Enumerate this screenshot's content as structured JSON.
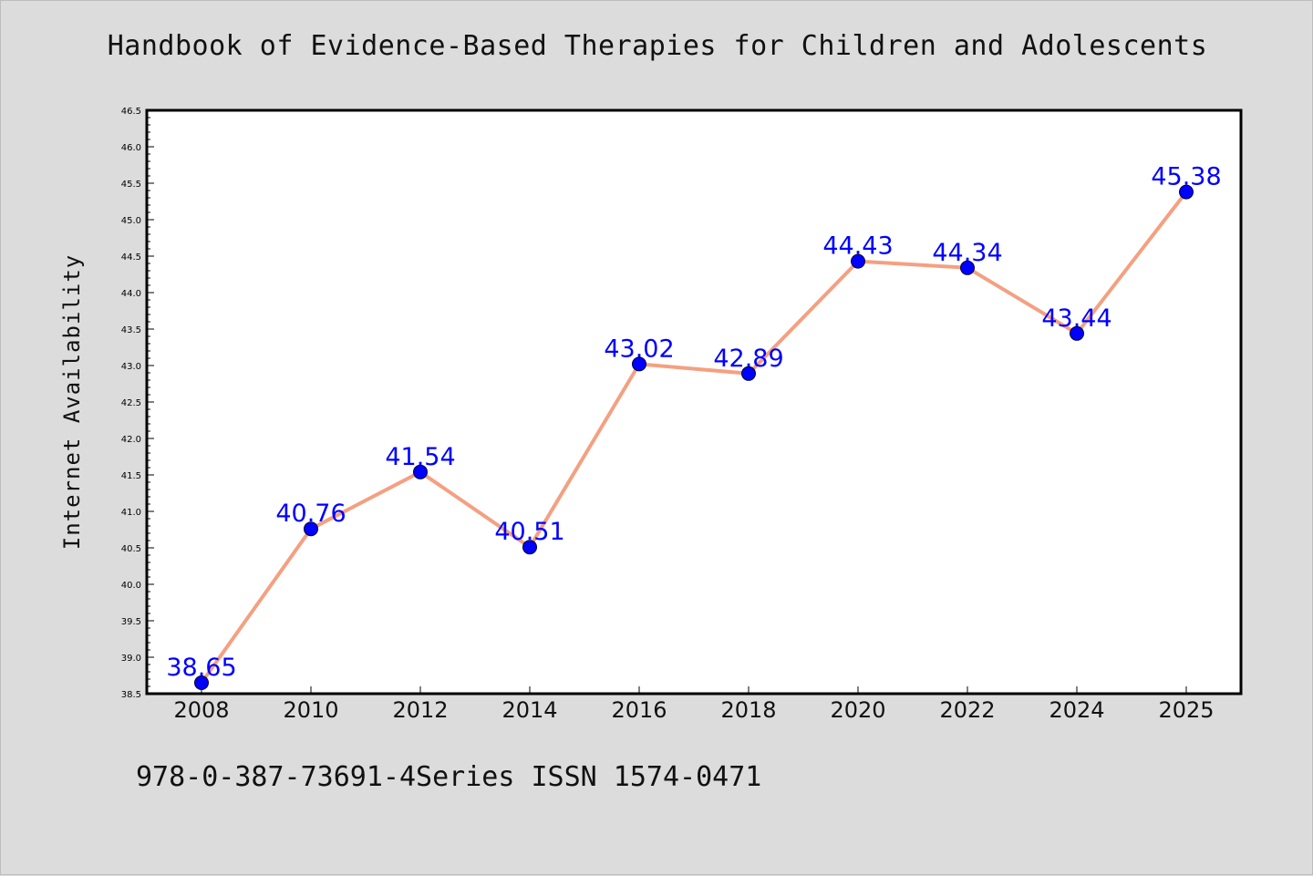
{
  "chart_data": {
    "type": "line",
    "title": "Handbook of Evidence-Based Therapies for Children and Adolescents",
    "ylabel": "Internet Availability",
    "categories": [
      "2008",
      "2010",
      "2012",
      "2014",
      "2016",
      "2018",
      "2020",
      "2022",
      "2024",
      "2025"
    ],
    "values": [
      38.65,
      40.76,
      41.54,
      40.51,
      43.02,
      42.89,
      44.43,
      44.34,
      43.44,
      45.38
    ],
    "data_labels": [
      "38.65",
      "40.76",
      "41.54",
      "40.51",
      "43.02",
      "42.89",
      "44.43",
      "44.34",
      "43.44",
      "45.38"
    ],
    "ylim": [
      38.5,
      46.5
    ],
    "yticks": [
      "38.5",
      "39.0",
      "39.5",
      "40.0",
      "40.5",
      "41.0",
      "41.5",
      "42.0",
      "42.5",
      "43.0",
      "43.5",
      "44.0",
      "44.5",
      "45.0",
      "45.5",
      "46.0",
      "46.5"
    ],
    "grid": false,
    "line_color": "#f4a081",
    "marker_color": "#0000ff",
    "label_color": "#0000ff"
  },
  "footer": {
    "text": "978-0-387-73691-4Series ISSN 1574-0471"
  }
}
